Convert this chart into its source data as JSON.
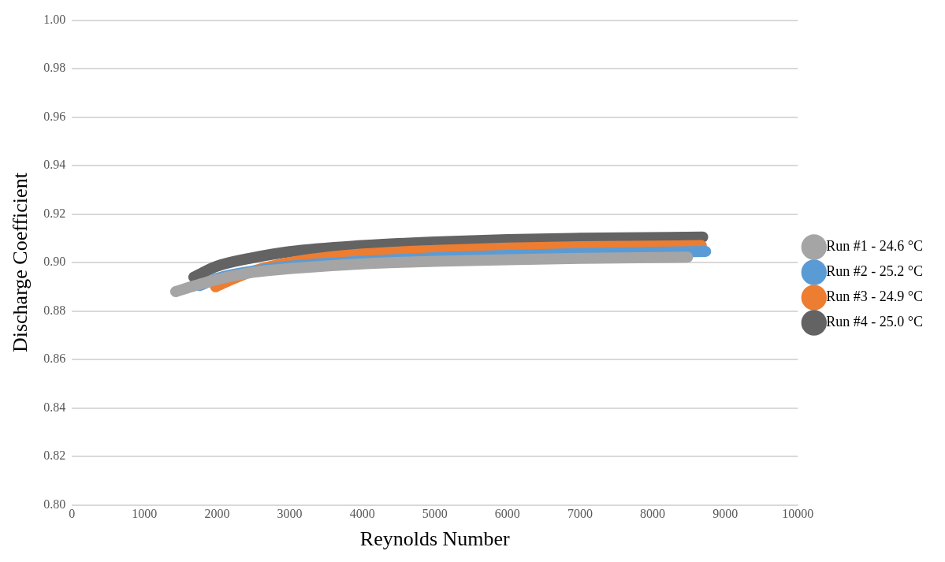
{
  "chart_data": {
    "type": "line",
    "xlabel": "Reynolds Number",
    "ylabel": "Discharge Coefficient",
    "xlim": [
      0,
      10000
    ],
    "xticks": [
      0,
      1000,
      2000,
      3000,
      4000,
      5000,
      6000,
      7000,
      8000,
      9000,
      10000
    ],
    "ylim": [
      0.8,
      1.0
    ],
    "yticks": [
      {
        "value": 0.8,
        "label": "0.80"
      },
      {
        "value": 0.82,
        "label": "0.82"
      },
      {
        "value": 0.84,
        "label": "0.84"
      },
      {
        "value": 0.86,
        "label": "0.86"
      },
      {
        "value": 0.88,
        "label": "0.88"
      },
      {
        "value": 0.9,
        "label": "0.90"
      },
      {
        "value": 0.92,
        "label": "0.92"
      },
      {
        "value": 0.94,
        "label": "0.94"
      },
      {
        "value": 0.96,
        "label": "0.96"
      },
      {
        "value": 0.98,
        "label": "0.98"
      },
      {
        "value": 1.0,
        "label": "1.00"
      }
    ],
    "grid": "y",
    "legend": "right",
    "marker": "none",
    "line_style": "solid",
    "series": [
      {
        "name": "Run #1 - 24.6 °C",
        "color": "#a5a5a5",
        "x": [
          1430,
          1700,
          2000,
          2500,
          3000,
          4000,
          5000,
          6000,
          7000,
          8480
        ],
        "values": [
          0.888,
          0.8905,
          0.893,
          0.896,
          0.8975,
          0.8995,
          0.9005,
          0.9012,
          0.9017,
          0.9022
        ]
      },
      {
        "name": "Run #2 - 25.2 °C",
        "color": "#5b9bd5",
        "x": [
          1760,
          2000,
          2500,
          3000,
          4000,
          5000,
          6000,
          7000,
          8730
        ],
        "values": [
          0.8905,
          0.8935,
          0.8965,
          0.8985,
          0.9005,
          0.902,
          0.903,
          0.9037,
          0.9046
        ]
      },
      {
        "name": "Run #3 - 24.9 °C",
        "color": "#ed7d31",
        "x": [
          1980,
          2200,
          2500,
          3000,
          4000,
          5000,
          6000,
          7000,
          8670
        ],
        "values": [
          0.89,
          0.893,
          0.8965,
          0.9,
          0.9035,
          0.905,
          0.906,
          0.9065,
          0.907
        ]
      },
      {
        "name": "Run #4 - 25.0 °C",
        "color": "#636363",
        "x": [
          1680,
          2000,
          2500,
          3000,
          4000,
          5000,
          6000,
          7000,
          8690
        ],
        "values": [
          0.894,
          0.8985,
          0.902,
          0.9045,
          0.907,
          0.9085,
          0.9095,
          0.91,
          0.9105
        ]
      }
    ]
  }
}
